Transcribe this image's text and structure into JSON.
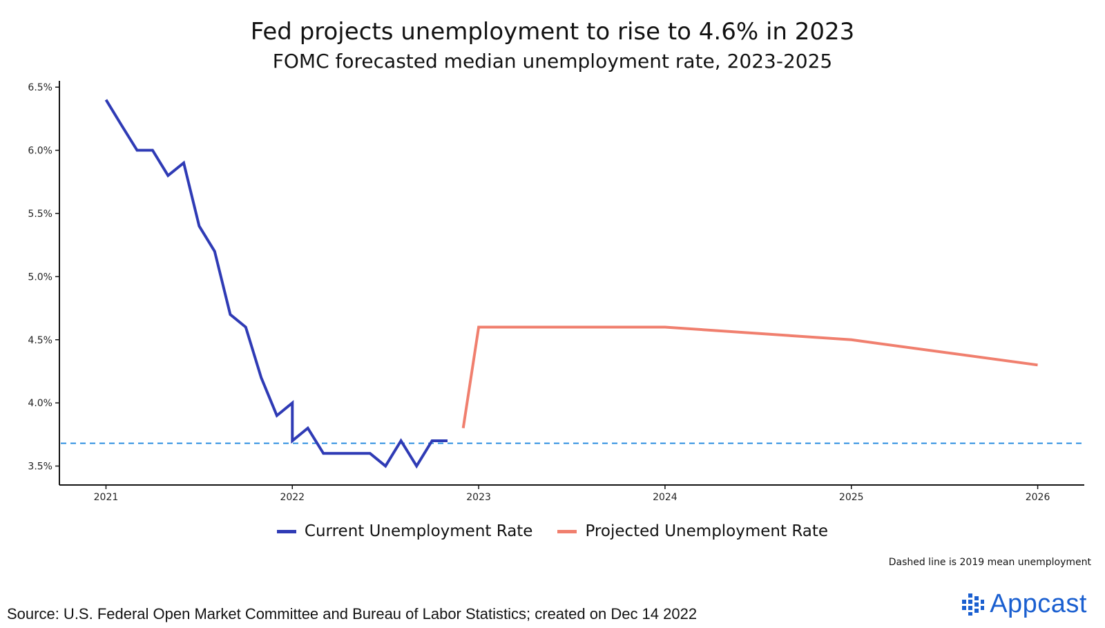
{
  "chart_data": {
    "type": "line",
    "title": "Fed projects unemployment to rise to 4.6% in 2023",
    "subtitle": "FOMC forecasted median unemployment rate, 2023-2025",
    "xlabel": "",
    "ylabel": "",
    "xlim": [
      2020.75,
      2026.25
    ],
    "ylim": [
      3.35,
      6.55
    ],
    "x_ticks": [
      2021,
      2022,
      2023,
      2024,
      2025,
      2026
    ],
    "x_tick_labels": [
      "2021",
      "2022",
      "2023",
      "2024",
      "2025",
      "2026"
    ],
    "y_ticks": [
      3.5,
      4.0,
      4.5,
      5.0,
      5.5,
      6.0,
      6.5
    ],
    "y_tick_labels": [
      "3.5%",
      "4.0%",
      "4.5%",
      "5.0%",
      "5.5%",
      "6.0%",
      "6.5%"
    ],
    "grid": false,
    "legend_position": "bottom",
    "series": [
      {
        "name": "Current Unemployment Rate",
        "color": "#2f3bb5",
        "x": [
          2021.0,
          2021.083,
          2021.167,
          2021.25,
          2021.333,
          2021.417,
          2021.5,
          2021.583,
          2021.667,
          2021.75,
          2021.833,
          2021.917,
          2022.0,
          2022.0,
          2022.083,
          2022.167,
          2022.25,
          2022.333,
          2022.417,
          2022.5,
          2022.583,
          2022.667,
          2022.75,
          2022.833
        ],
        "values": [
          6.4,
          6.2,
          6.0,
          6.0,
          5.8,
          5.9,
          5.4,
          5.2,
          4.7,
          4.6,
          4.2,
          3.9,
          4.0,
          3.7,
          3.8,
          3.6,
          3.6,
          3.6,
          3.6,
          3.5,
          3.7,
          3.5,
          3.7,
          3.7
        ]
      },
      {
        "name": "Projected Unemployment Rate",
        "color": "#f07f6e",
        "x": [
          2022.917,
          2023.0,
          2024.0,
          2025.0,
          2026.0
        ],
        "values": [
          3.8,
          4.6,
          4.6,
          4.5,
          4.3
        ]
      }
    ],
    "reference_line": {
      "value": 3.68,
      "style": "dashed",
      "color": "#2e8fe0"
    },
    "note": "Dashed line is 2019 mean unemployment"
  },
  "source": "Source: U.S. Federal Open Market Committee and Bureau of Labor Statistics; created on Dec 14 2022",
  "logo": {
    "text": "Appcast",
    "icon": "appcast-dots-icon",
    "color": "#1a5fd0"
  }
}
